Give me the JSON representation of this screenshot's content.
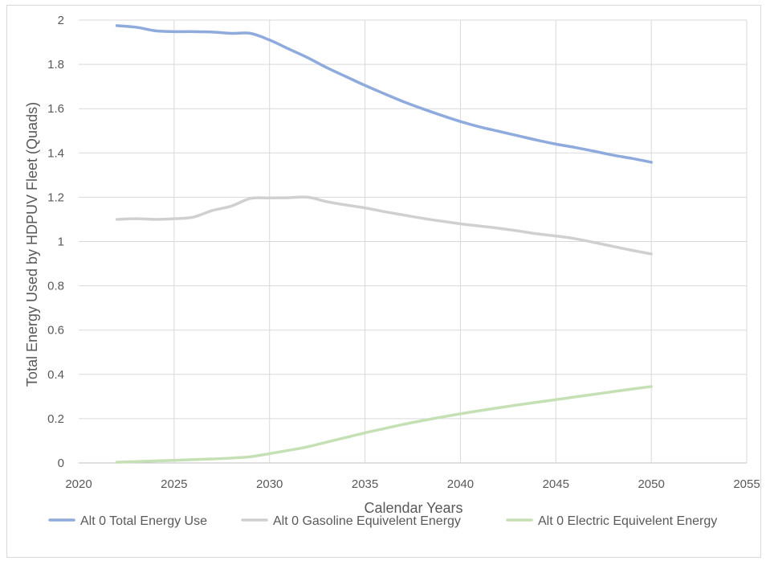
{
  "chart_data": {
    "type": "line",
    "title": "",
    "xlabel": "Calendar Years",
    "ylabel": "Total Energy Used by HDPUV Fleet (Quads)",
    "xlim": [
      2020,
      2055
    ],
    "ylim": [
      0,
      2
    ],
    "xticks": [
      2020,
      2025,
      2030,
      2035,
      2040,
      2045,
      2050,
      2055
    ],
    "yticks": [
      0,
      0.2,
      0.4,
      0.6,
      0.8,
      1,
      1.2,
      1.4,
      1.6,
      1.8,
      2
    ],
    "ytick_labels": [
      "0",
      "0.2",
      "0.4",
      "0.6",
      "0.8",
      "1",
      "1.2",
      "1.4",
      "1.6",
      "1.8",
      "2"
    ],
    "grid": "vertical and horizontal",
    "legend_position": "bottom",
    "x": [
      2022,
      2023,
      2024,
      2025,
      2026,
      2027,
      2028,
      2029,
      2030,
      2031,
      2032,
      2033,
      2034,
      2035,
      2036,
      2037,
      2038,
      2039,
      2040,
      2041,
      2042,
      2043,
      2044,
      2045,
      2046,
      2047,
      2048,
      2049,
      2050
    ],
    "series": [
      {
        "name": "Alt 0 Total Energy Use",
        "color": "#8faadc",
        "values": [
          1.975,
          1.968,
          1.952,
          1.948,
          1.948,
          1.946,
          1.94,
          1.94,
          1.91,
          1.87,
          1.83,
          1.785,
          1.745,
          1.705,
          1.668,
          1.632,
          1.6,
          1.57,
          1.542,
          1.518,
          1.498,
          1.478,
          1.458,
          1.44,
          1.425,
          1.408,
          1.39,
          1.375,
          1.358
        ]
      },
      {
        "name": "Alt 0 Gasoline Equivelent Energy",
        "color": "#d0d0d0",
        "values": [
          1.1,
          1.103,
          1.1,
          1.103,
          1.11,
          1.14,
          1.16,
          1.195,
          1.197,
          1.198,
          1.2,
          1.18,
          1.165,
          1.152,
          1.135,
          1.12,
          1.105,
          1.092,
          1.08,
          1.07,
          1.06,
          1.048,
          1.035,
          1.025,
          1.013,
          0.996,
          0.978,
          0.96,
          0.944
        ]
      },
      {
        "name": "Alt 0 Electric Equivelent Energy",
        "color": "#c5e0b4",
        "values": [
          0.003,
          0.006,
          0.009,
          0.012,
          0.015,
          0.018,
          0.022,
          0.028,
          0.042,
          0.057,
          0.073,
          0.094,
          0.115,
          0.136,
          0.155,
          0.174,
          0.191,
          0.207,
          0.222,
          0.236,
          0.249,
          0.262,
          0.274,
          0.286,
          0.298,
          0.31,
          0.322,
          0.334,
          0.345
        ]
      }
    ]
  }
}
